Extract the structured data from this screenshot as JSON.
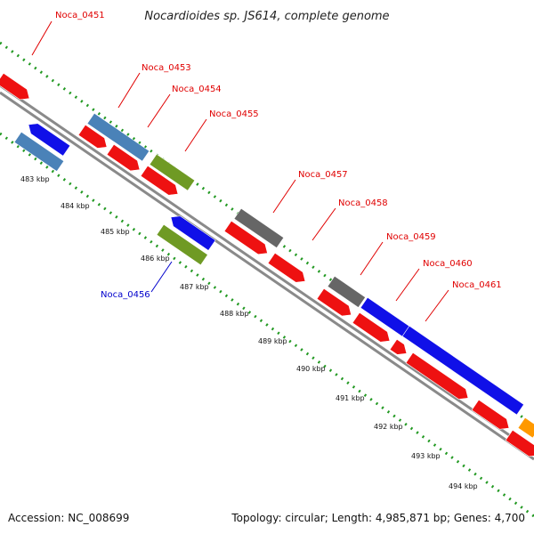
{
  "title": "Nocardioides sp. JS614, complete genome",
  "footer": {
    "accession": "Accession: NC_008699",
    "summary": "Topology: circular; Length: 4,985,871 bp; Genes: 4,700"
  },
  "colors": {
    "backbone": "#8a8a8a",
    "tick_green": "#229922",
    "red_gene": "#ee1111",
    "steel_gene": "#4a82b8",
    "olive_gene": "#6f9a24",
    "gray_gene": "#666666",
    "blue_gene": "#1010e8",
    "orange_gene": "#ff9900",
    "label_red": "#e00000",
    "label_blue": "#0000cc"
  },
  "ticks": [
    "483 kbp",
    "484 kbp",
    "485 kbp",
    "486 kbp",
    "487 kbp",
    "488 kbp",
    "489 kbp",
    "490 kbp",
    "491 kbp",
    "492 kbp",
    "493 kbp",
    "494 kbp"
  ],
  "gene_labels": [
    {
      "id": "Noca_0451",
      "color": "red"
    },
    {
      "id": "Noca_0453",
      "color": "red"
    },
    {
      "id": "Noca_0454",
      "color": "red"
    },
    {
      "id": "Noca_0455",
      "color": "red"
    },
    {
      "id": "Noca_0456",
      "color": "blue"
    },
    {
      "id": "Noca_0457",
      "color": "red"
    },
    {
      "id": "Noca_0458",
      "color": "red"
    },
    {
      "id": "Noca_0459",
      "color": "red"
    },
    {
      "id": "Noca_0460",
      "color": "red"
    },
    {
      "id": "Noca_0461",
      "color": "red"
    }
  ]
}
